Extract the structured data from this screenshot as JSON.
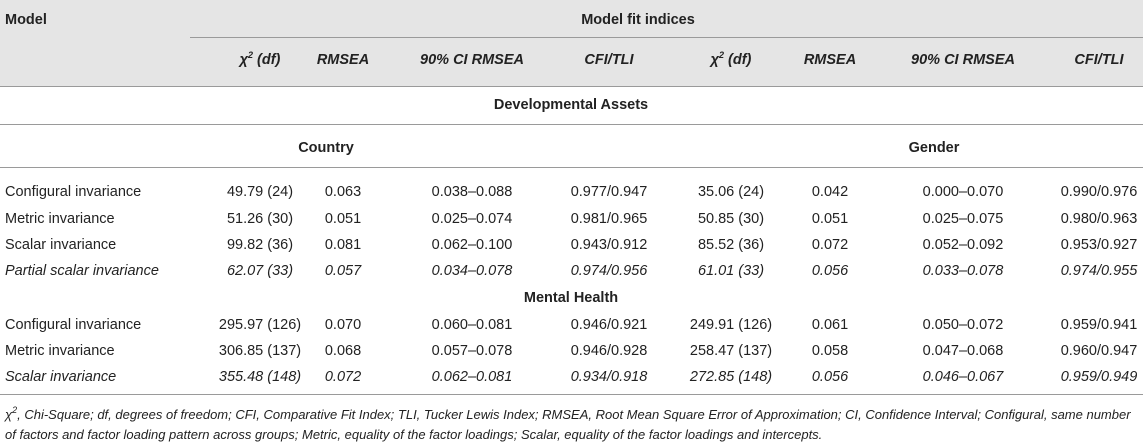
{
  "header": {
    "model_label": "Model",
    "fit_label": "Model fit indices",
    "columns": [
      {
        "main": "χ",
        "sup": "2",
        "rest": " (df)"
      },
      {
        "main": "RMSEA"
      },
      {
        "main": "90% CI RMSEA"
      },
      {
        "main": "CFI/TLI"
      },
      {
        "main": "χ",
        "sup": "2",
        "rest": " (df)"
      },
      {
        "main": "RMSEA"
      },
      {
        "main": "90% CI RMSEA"
      },
      {
        "main": "CFI/TLI"
      }
    ]
  },
  "sections": {
    "developmental": "Developmental Assets",
    "country": "Country",
    "gender": "Gender",
    "mental": "Mental Health"
  },
  "rows": [
    {
      "model": "Configural invariance",
      "cells": [
        "49.79 (24)",
        "0.063",
        "0.038–0.088",
        "0.977/0.947",
        "35.06 (24)",
        "0.042",
        "0.000–0.070",
        "0.990/0.976"
      ]
    },
    {
      "model": "Metric invariance",
      "cells": [
        "51.26 (30)",
        "0.051",
        "0.025–0.074",
        "0.981/0.965",
        "50.85 (30)",
        "0.051",
        "0.025–0.075",
        "0.980/0.963"
      ]
    },
    {
      "model": "Scalar invariance",
      "cells": [
        "99.82 (36)",
        "0.081",
        "0.062–0.100",
        "0.943/0.912",
        "85.52 (36)",
        "0.072",
        "0.052–0.092",
        "0.953/0.927"
      ]
    },
    {
      "model": "Partial scalar invariance",
      "cells": [
        "62.07 (33)",
        "0.057",
        "0.034–0.078",
        "0.974/0.956",
        "61.01 (33)",
        "0.056",
        "0.033–0.078",
        "0.974/0.955"
      ]
    },
    {
      "model": "Configural invariance",
      "cells": [
        "295.97 (126)",
        "0.070",
        "0.060–0.081",
        "0.946/0.921",
        "249.91 (126)",
        "0.061",
        "0.050–0.072",
        "0.959/0.941"
      ]
    },
    {
      "model": "Metric invariance",
      "cells": [
        "306.85 (137)",
        "0.068",
        "0.057–0.078",
        "0.946/0.928",
        "258.47 (137)",
        "0.058",
        "0.047–0.068",
        "0.960/0.947"
      ]
    },
    {
      "model": "Scalar invariance",
      "cells": [
        "355.48 (148)",
        "0.072",
        "0.062–0.081",
        "0.934/0.918",
        "272.85 (148)",
        "0.056",
        "0.046–0.067",
        "0.959/0.949"
      ]
    }
  ],
  "footnote": {
    "chi": "χ",
    "sup": "2",
    "text": ", Chi-Square; df, degrees of freedom; CFI, Comparative Fit Index; TLI, Tucker Lewis Index; RMSEA, Root Mean Square Error of Approximation; CI, Confidence Interval; Configural, same number of factors and factor loading pattern across groups; Metric, equality of the factor loadings; Scalar, equality of the factor loadings and intercepts."
  }
}
